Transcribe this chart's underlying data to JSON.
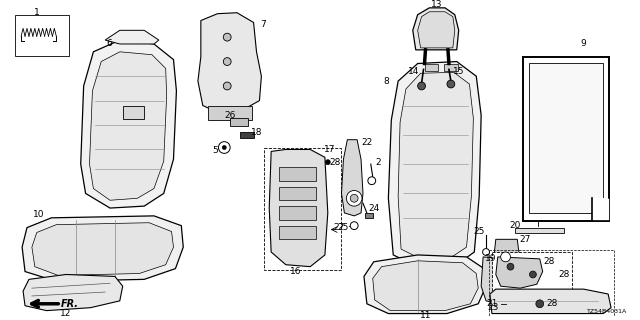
{
  "bg_color": "#ffffff",
  "fig_width": 6.4,
  "fig_height": 3.2,
  "diagram_code": "TZ54B4031A"
}
